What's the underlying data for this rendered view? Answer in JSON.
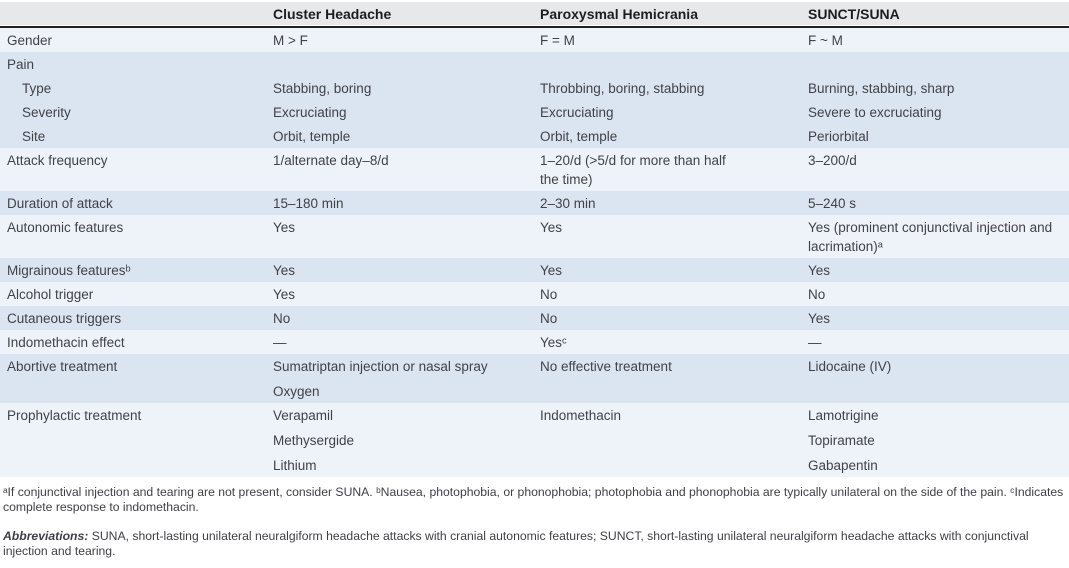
{
  "table": {
    "columns": [
      "",
      "Cluster Headache",
      "Paroxysmal Hemicrania",
      "SUNCT/SUNA"
    ],
    "rows": [
      {
        "label": "Gender",
        "group": 0,
        "indent": false,
        "cells": [
          [
            "M > F"
          ],
          [
            "F = M"
          ],
          [
            "F ~ M"
          ]
        ]
      },
      {
        "label": "Pain",
        "group": 1,
        "indent": false,
        "cells": [
          [],
          [],
          []
        ]
      },
      {
        "label": "Type",
        "group": 1,
        "indent": true,
        "cells": [
          [
            "Stabbing, boring"
          ],
          [
            "Throbbing, boring, stabbing"
          ],
          [
            "Burning, stabbing, sharp"
          ]
        ]
      },
      {
        "label": "Severity",
        "group": 1,
        "indent": true,
        "cells": [
          [
            "Excruciating"
          ],
          [
            "Excruciating"
          ],
          [
            "Severe to excruciating"
          ]
        ]
      },
      {
        "label": "Site",
        "group": 1,
        "indent": true,
        "cells": [
          [
            "Orbit, temple"
          ],
          [
            "Orbit, temple"
          ],
          [
            "Periorbital"
          ]
        ]
      },
      {
        "label": "Attack frequency",
        "group": 2,
        "indent": false,
        "cells": [
          [
            "1/alternate day–8/d"
          ],
          [
            "1–20/d (>5/d for more than half the time)"
          ],
          [
            "3–200/d"
          ]
        ]
      },
      {
        "label": "Duration of attack",
        "group": 3,
        "indent": false,
        "cells": [
          [
            "15–180 min"
          ],
          [
            "2–30 min"
          ],
          [
            "5–240 s"
          ]
        ]
      },
      {
        "label": "Autonomic features",
        "group": 4,
        "indent": false,
        "cells": [
          [
            "Yes"
          ],
          [
            "Yes"
          ],
          [
            "Yes (prominent conjunctival injection and lacrimation)ᵃ"
          ]
        ]
      },
      {
        "label": "Migrainous featuresᵇ",
        "group": 5,
        "indent": false,
        "cells": [
          [
            "Yes"
          ],
          [
            "Yes"
          ],
          [
            "Yes"
          ]
        ]
      },
      {
        "label": "Alcohol trigger",
        "group": 6,
        "indent": false,
        "cells": [
          [
            "Yes"
          ],
          [
            "No"
          ],
          [
            "No"
          ]
        ]
      },
      {
        "label": "Cutaneous triggers",
        "group": 7,
        "indent": false,
        "cells": [
          [
            "No"
          ],
          [
            "No"
          ],
          [
            "Yes"
          ]
        ]
      },
      {
        "label": "Indomethacin effect",
        "group": 8,
        "indent": false,
        "cells": [
          [
            "—"
          ],
          [
            "Yesᶜ"
          ],
          [
            "—"
          ]
        ]
      },
      {
        "label": "Abortive treatment",
        "group": 9,
        "indent": false,
        "cells": [
          [
            "Sumatriptan injection or nasal spray",
            "Oxygen"
          ],
          [
            "No effective treatment"
          ],
          [
            "Lidocaine (IV)"
          ]
        ]
      },
      {
        "label": "Prophylactic treatment",
        "group": 10,
        "indent": false,
        "cells": [
          [
            "Verapamil",
            "Methysergide",
            "Lithium"
          ],
          [
            "Indomethacin"
          ],
          [
            "Lamotrigine",
            "Topiramate",
            "Gabapentin"
          ]
        ]
      }
    ]
  },
  "footnotes": {
    "general": "ᵃIf conjunctival injection and tearing are not present, consider SUNA.  ᵇNausea, photophobia, or phonophobia; photophobia and phonophobia are typically unilateral on the side of the pain.  ᶜIndicates complete response to indomethacin.",
    "abbreviations_label": "Abbreviations:",
    "abbreviations_text": "SUNA, short-lasting unilateral neuralgiform headache attacks with cranial autonomic features; SUNCT, short-lasting unilateral neuralgiform headache attacks with conjunctival injection and tearing."
  },
  "colors": {
    "band_light": "#eef3fa",
    "band_dark": "#dbe5f1",
    "header_bg": "#e7e8e9",
    "rule": "#231f20",
    "text": "#414247"
  }
}
